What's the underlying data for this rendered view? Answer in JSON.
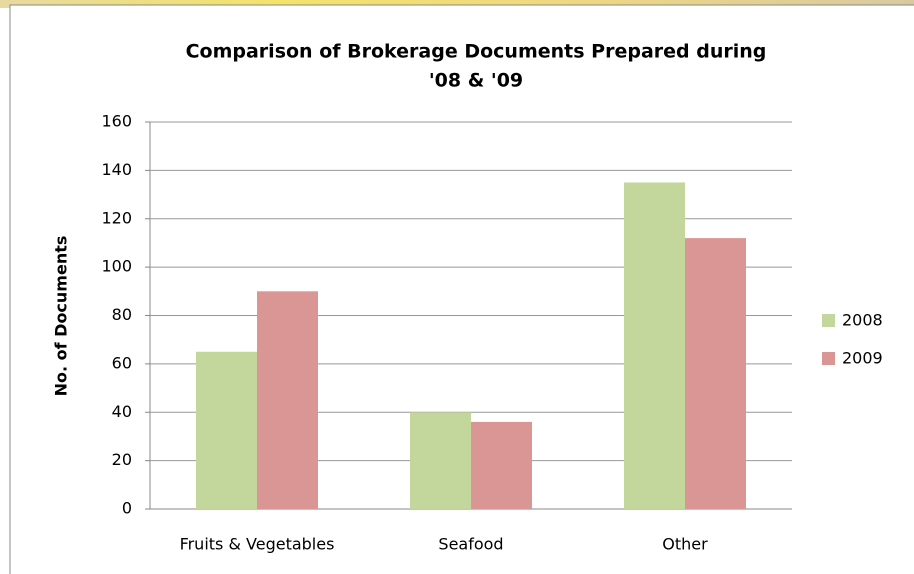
{
  "chart_data": {
    "type": "bar",
    "title": [
      "Comparison of  Brokerage Documents Prepared during",
      "'08 & '09"
    ],
    "y_label": "No. of Documents",
    "categories": [
      "Fruits & Vegetables",
      "Seafood",
      "Other"
    ],
    "series": [
      {
        "name": "2008",
        "color": "#c3d69b",
        "values": [
          65,
          40,
          135
        ]
      },
      {
        "name": "2009",
        "color": "#d99694",
        "values": [
          90,
          36,
          112
        ]
      }
    ],
    "ylim": [
      0,
      160
    ],
    "yticks": [
      0,
      20,
      40,
      60,
      80,
      100,
      120,
      140,
      160
    ],
    "grid": true,
    "legend": "right"
  }
}
